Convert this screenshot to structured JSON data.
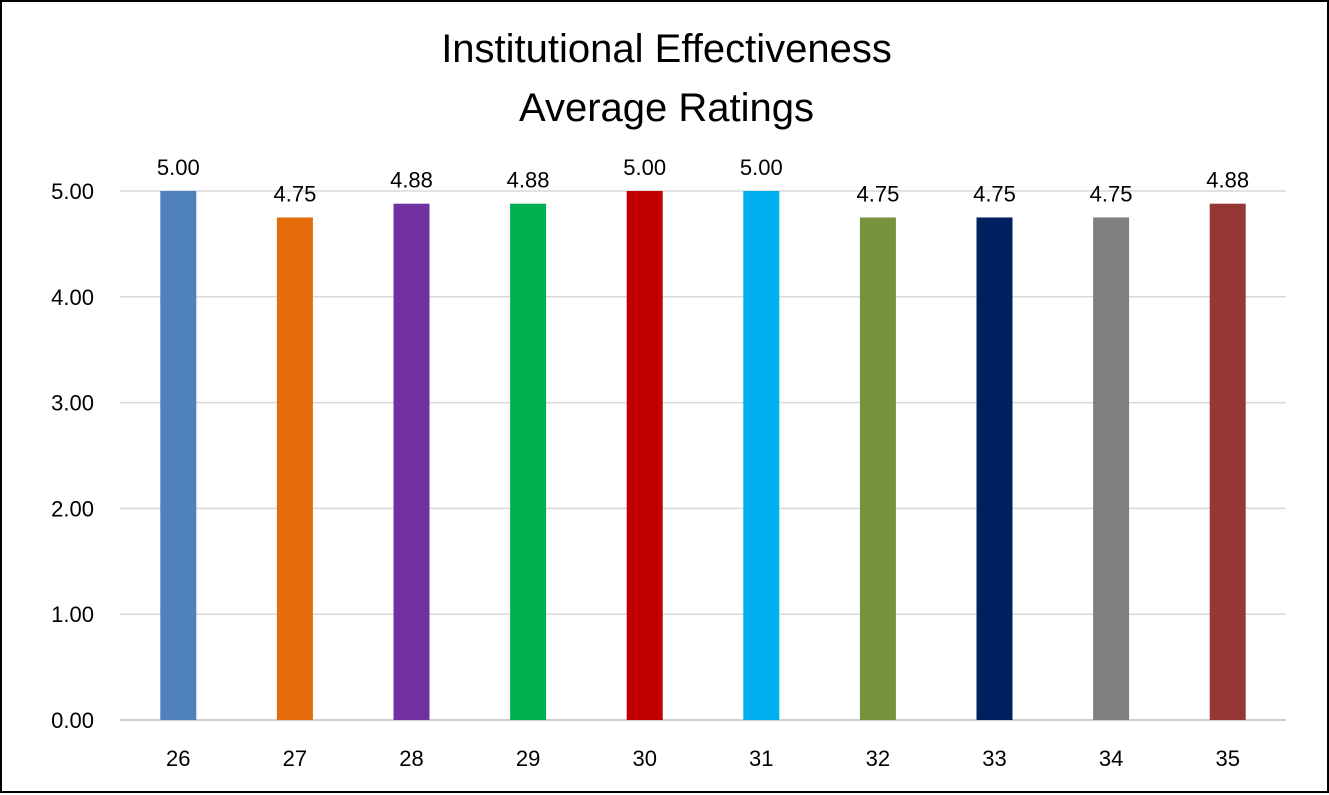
{
  "chart_data": {
    "type": "bar",
    "title_lines": [
      "Institutional Effectiveness",
      "Average Ratings"
    ],
    "categories": [
      "26",
      "27",
      "28",
      "29",
      "30",
      "31",
      "32",
      "33",
      "34",
      "35"
    ],
    "values": [
      5.0,
      4.75,
      4.88,
      4.88,
      5.0,
      5.0,
      4.75,
      4.75,
      4.75,
      4.88
    ],
    "value_labels": [
      "5.00",
      "4.75",
      "4.88",
      "4.88",
      "5.00",
      "5.00",
      "4.75",
      "4.75",
      "4.75",
      "4.88"
    ],
    "colors": [
      "#4F81BD",
      "#E46C0A",
      "#7030A0",
      "#00B050",
      "#C00000",
      "#00B0F0",
      "#77933C",
      "#002060",
      "#7F7F7F",
      "#953735"
    ],
    "yticks": [
      "0.00",
      "1.00",
      "2.00",
      "3.00",
      "4.00",
      "5.00"
    ],
    "ylim": [
      0,
      5
    ],
    "xlabel": "",
    "ylabel": "",
    "grid": true,
    "legend": "none"
  }
}
